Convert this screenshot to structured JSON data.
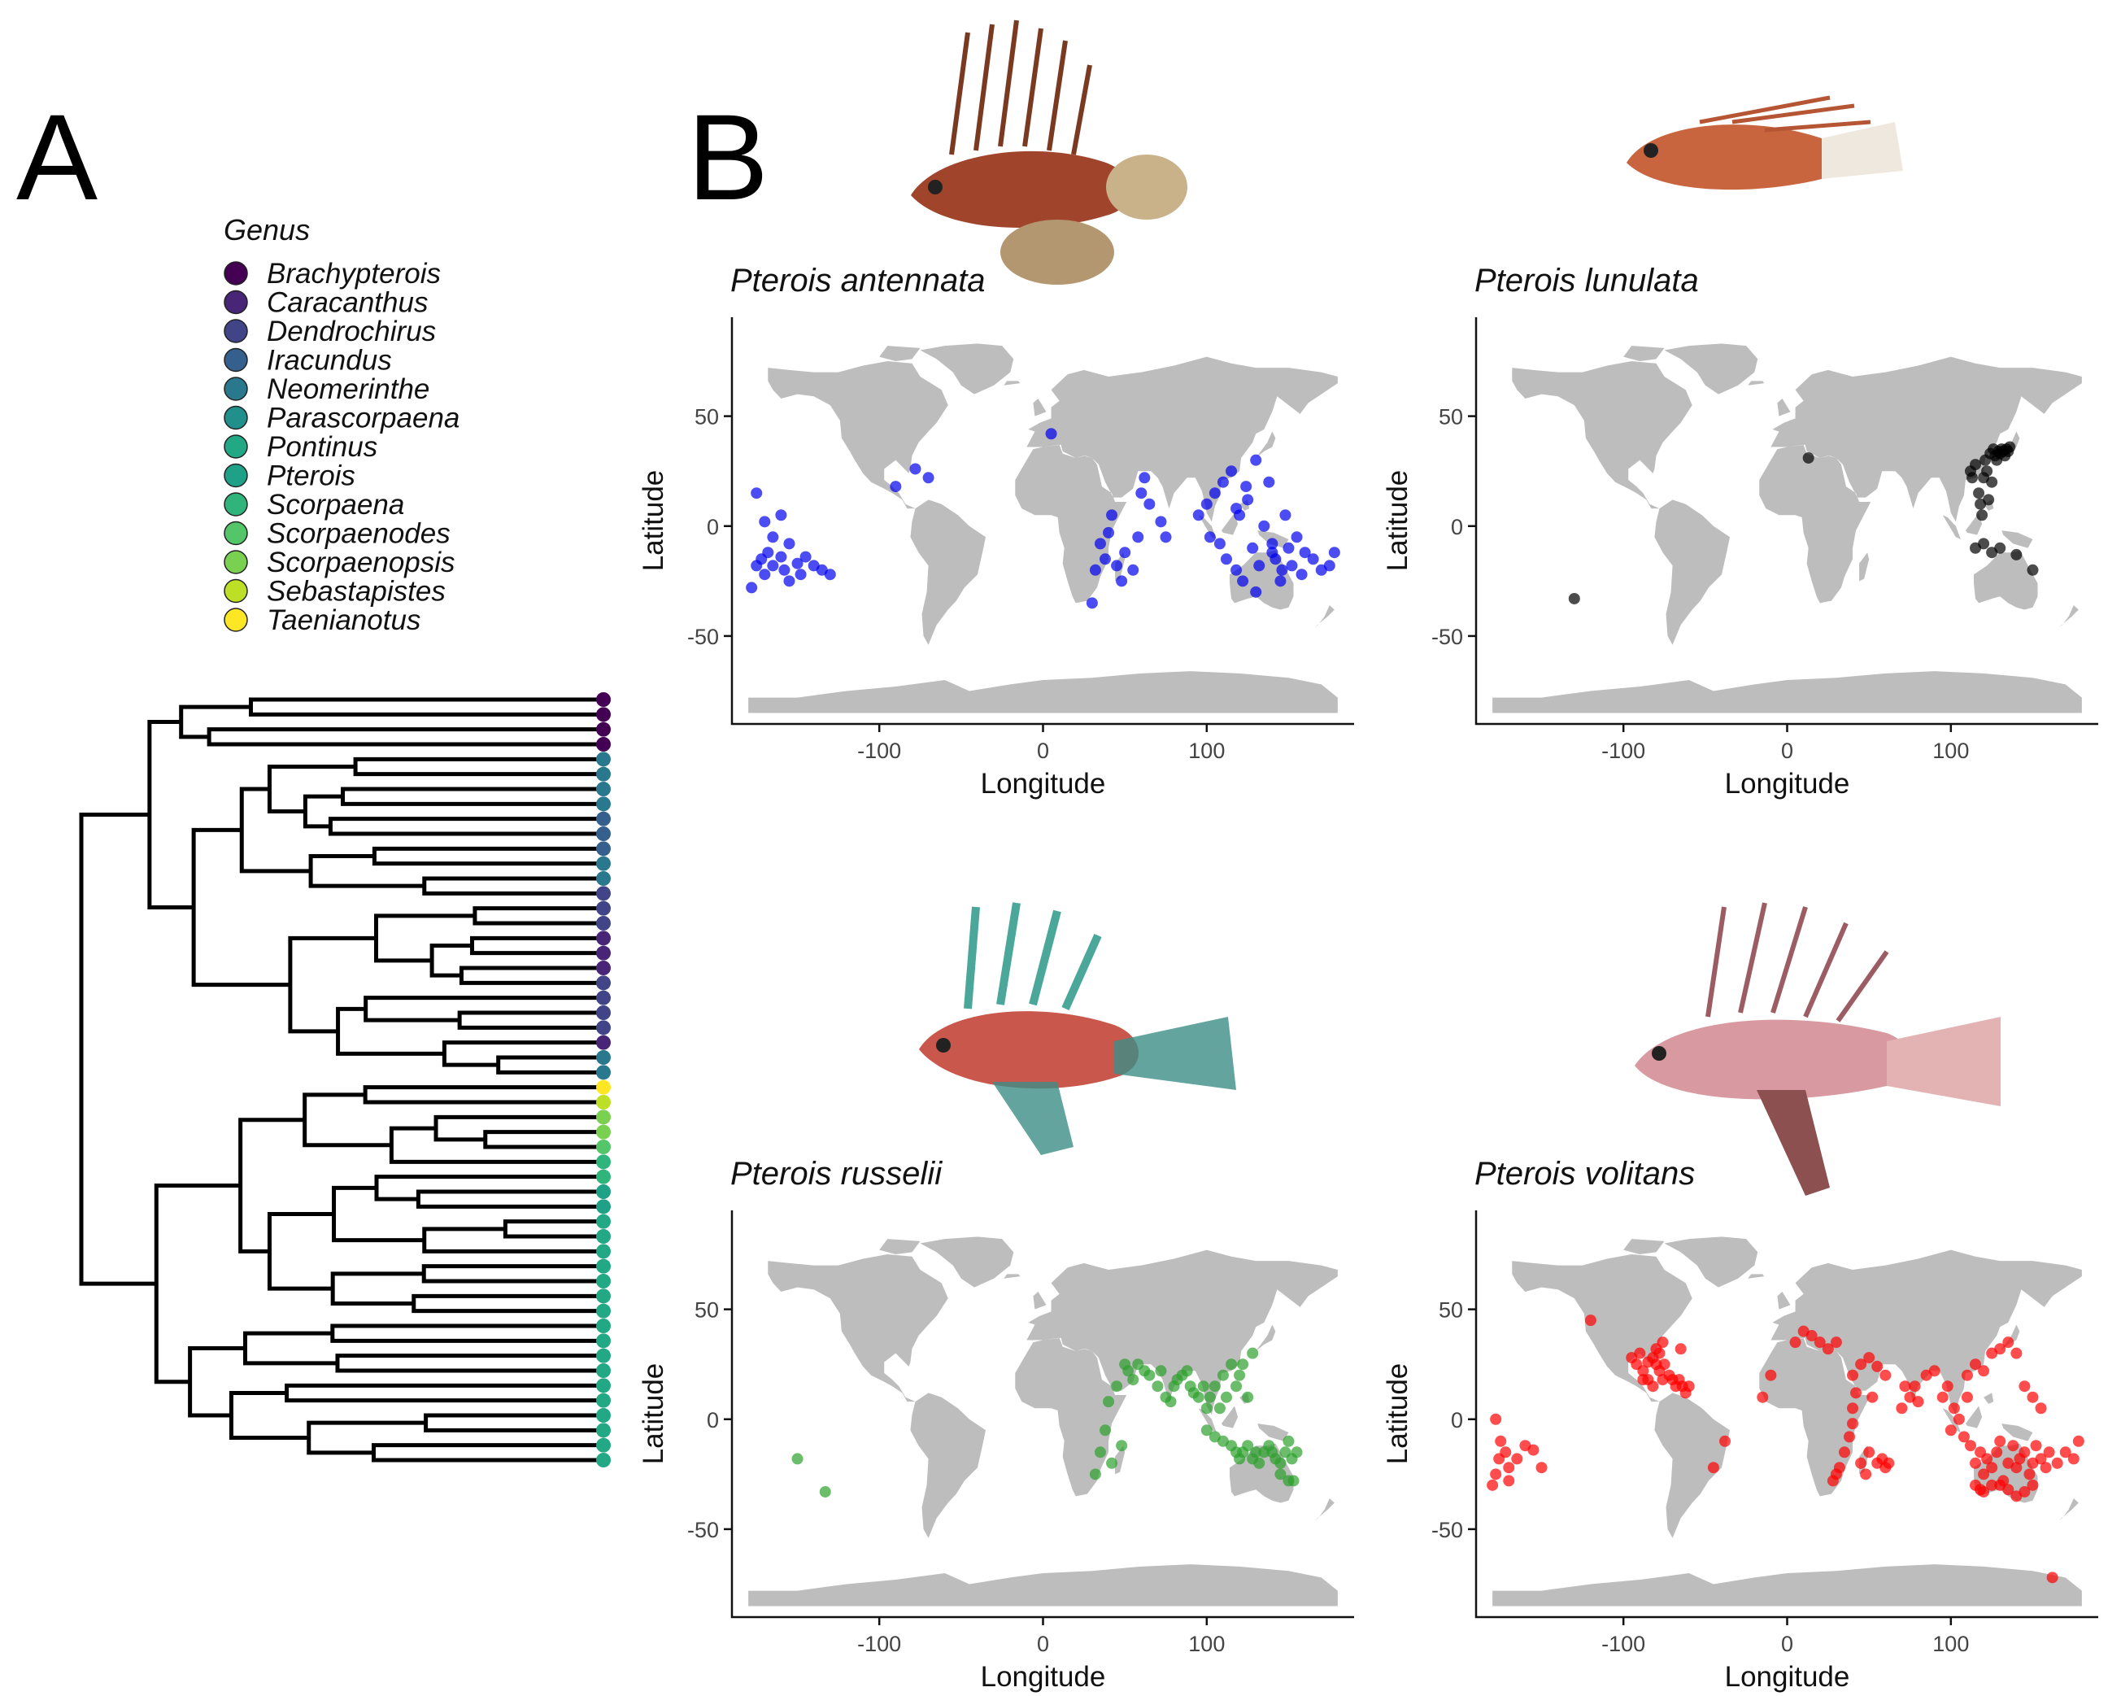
{
  "panels": {
    "a_label": "A",
    "b_label": "B"
  },
  "legend": {
    "title": "Genus",
    "items": [
      {
        "label": "Brachypterois",
        "color": "#440154"
      },
      {
        "label": "Caracanthus",
        "color": "#482576"
      },
      {
        "label": "Dendrochirus",
        "color": "#414487"
      },
      {
        "label": "Iracundus",
        "color": "#35608d"
      },
      {
        "label": "Neomerinthe",
        "color": "#2a788e"
      },
      {
        "label": "Parascorpaena",
        "color": "#21908c"
      },
      {
        "label": "Pontinus",
        "color": "#22a884"
      },
      {
        "label": "Pterois",
        "color": "#1fa187"
      },
      {
        "label": "Scorpaena",
        "color": "#2fb47c"
      },
      {
        "label": "Scorpaenodes",
        "color": "#54c568"
      },
      {
        "label": "Scorpaenopsis",
        "color": "#7ad151"
      },
      {
        "label": "Sebastapistes",
        "color": "#bddf26"
      },
      {
        "label": "Taenianotus",
        "color": "#fde725"
      }
    ]
  },
  "chart_data": [
    {
      "type": "scatter",
      "title": "Pterois antennata",
      "xlabel": "Longitude",
      "ylabel": "Latitude",
      "xlim": [
        -190,
        190
      ],
      "ylim": [
        -90,
        95
      ],
      "xticks": [
        -100,
        0,
        100
      ],
      "yticks": [
        -50,
        0,
        50
      ],
      "color": "#0000ee",
      "points": [
        [
          -178,
          -28
        ],
        [
          -175,
          -18
        ],
        [
          -172,
          -15
        ],
        [
          -170,
          -22
        ],
        [
          -168,
          -12
        ],
        [
          -165,
          -18
        ],
        [
          -160,
          -14
        ],
        [
          -158,
          -20
        ],
        [
          -155,
          -25
        ],
        [
          -150,
          -17
        ],
        [
          -148,
          -22
        ],
        [
          -145,
          -14
        ],
        [
          -140,
          -18
        ],
        [
          -135,
          -20
        ],
        [
          -130,
          -22
        ],
        [
          -175,
          15
        ],
        [
          -170,
          2
        ],
        [
          -165,
          -5
        ],
        [
          -160,
          5
        ],
        [
          -155,
          -8
        ],
        [
          -78,
          26
        ],
        [
          -70,
          22
        ],
        [
          -90,
          18
        ],
        [
          5,
          42
        ],
        [
          30,
          -35
        ],
        [
          32,
          -20
        ],
        [
          35,
          -8
        ],
        [
          38,
          -15
        ],
        [
          40,
          -3
        ],
        [
          42,
          5
        ],
        [
          45,
          -18
        ],
        [
          48,
          -25
        ],
        [
          50,
          -12
        ],
        [
          55,
          -20
        ],
        [
          58,
          -5
        ],
        [
          60,
          15
        ],
        [
          62,
          22
        ],
        [
          65,
          10
        ],
        [
          72,
          2
        ],
        [
          75,
          -5
        ],
        [
          95,
          5
        ],
        [
          100,
          10
        ],
        [
          102,
          -5
        ],
        [
          105,
          15
        ],
        [
          108,
          -8
        ],
        [
          110,
          20
        ],
        [
          112,
          -15
        ],
        [
          115,
          25
        ],
        [
          118,
          -20
        ],
        [
          120,
          5
        ],
        [
          122,
          -25
        ],
        [
          125,
          12
        ],
        [
          128,
          -10
        ],
        [
          130,
          30
        ],
        [
          132,
          -18
        ],
        [
          135,
          0
        ],
        [
          138,
          20
        ],
        [
          140,
          -8
        ],
        [
          142,
          -15
        ],
        [
          145,
          -25
        ],
        [
          148,
          5
        ],
        [
          150,
          -10
        ],
        [
          152,
          -18
        ],
        [
          155,
          -5
        ],
        [
          158,
          -22
        ],
        [
          160,
          -12
        ],
        [
          165,
          -15
        ],
        [
          170,
          -20
        ],
        [
          175,
          -18
        ],
        [
          178,
          -12
        ],
        [
          118,
          8
        ],
        [
          124,
          18
        ],
        [
          130,
          -30
        ],
        [
          140,
          -12
        ],
        [
          146,
          -20
        ]
      ]
    },
    {
      "type": "scatter",
      "title": "Pterois lunulata",
      "xlabel": "Longitude",
      "ylabel": "Latitude",
      "xlim": [
        -190,
        190
      ],
      "ylim": [
        -90,
        95
      ],
      "xticks": [
        -100,
        0,
        100
      ],
      "yticks": [
        -50,
        0,
        50
      ],
      "color": "#000000",
      "points": [
        [
          -130,
          -33
        ],
        [
          13,
          31
        ],
        [
          112,
          25
        ],
        [
          113,
          22
        ],
        [
          115,
          28
        ],
        [
          117,
          15
        ],
        [
          118,
          10
        ],
        [
          119,
          5
        ],
        [
          120,
          22
        ],
        [
          121,
          30
        ],
        [
          122,
          25
        ],
        [
          123,
          12
        ],
        [
          124,
          33
        ],
        [
          125,
          20
        ],
        [
          126,
          35
        ],
        [
          127,
          32
        ],
        [
          128,
          30
        ],
        [
          129,
          34
        ],
        [
          130,
          33
        ],
        [
          131,
          35
        ],
        [
          132,
          34
        ],
        [
          133,
          32
        ],
        [
          134,
          35
        ],
        [
          135,
          34
        ],
        [
          136,
          36
        ],
        [
          115,
          -10
        ],
        [
          120,
          -8
        ],
        [
          125,
          -12
        ],
        [
          130,
          -10
        ],
        [
          140,
          -13
        ],
        [
          150,
          -20
        ]
      ]
    },
    {
      "type": "scatter",
      "title": "Pterois russelii",
      "xlabel": "Longitude",
      "ylabel": "Latitude",
      "xlim": [
        -190,
        190
      ],
      "ylim": [
        -90,
        95
      ],
      "xticks": [
        -100,
        0,
        100
      ],
      "yticks": [
        -50,
        0,
        50
      ],
      "color": "#2ca02c",
      "points": [
        [
          -150,
          -18
        ],
        [
          -133,
          -33
        ],
        [
          32,
          -25
        ],
        [
          35,
          -15
        ],
        [
          38,
          -5
        ],
        [
          40,
          8
        ],
        [
          42,
          -20
        ],
        [
          45,
          15
        ],
        [
          48,
          -12
        ],
        [
          50,
          25
        ],
        [
          52,
          22
        ],
        [
          55,
          18
        ],
        [
          58,
          25
        ],
        [
          62,
          22
        ],
        [
          65,
          20
        ],
        [
          70,
          15
        ],
        [
          72,
          22
        ],
        [
          75,
          10
        ],
        [
          78,
          8
        ],
        [
          80,
          15
        ],
        [
          82,
          18
        ],
        [
          85,
          20
        ],
        [
          88,
          22
        ],
        [
          90,
          15
        ],
        [
          92,
          12
        ],
        [
          95,
          10
        ],
        [
          98,
          15
        ],
        [
          100,
          5
        ],
        [
          102,
          10
        ],
        [
          105,
          15
        ],
        [
          108,
          5
        ],
        [
          110,
          20
        ],
        [
          112,
          10
        ],
        [
          115,
          25
        ],
        [
          118,
          15
        ],
        [
          120,
          20
        ],
        [
          122,
          25
        ],
        [
          125,
          10
        ],
        [
          128,
          30
        ],
        [
          100,
          -5
        ],
        [
          105,
          -8
        ],
        [
          110,
          -10
        ],
        [
          115,
          -12
        ],
        [
          118,
          -15
        ],
        [
          120,
          -18
        ],
        [
          122,
          -15
        ],
        [
          125,
          -12
        ],
        [
          128,
          -18
        ],
        [
          130,
          -15
        ],
        [
          132,
          -20
        ],
        [
          135,
          -15
        ],
        [
          138,
          -12
        ],
        [
          140,
          -15
        ],
        [
          142,
          -18
        ],
        [
          145,
          -20
        ],
        [
          148,
          -15
        ],
        [
          150,
          -10
        ],
        [
          152,
          -18
        ],
        [
          155,
          -15
        ],
        [
          145,
          -25
        ],
        [
          150,
          -28
        ],
        [
          153,
          -28
        ]
      ]
    },
    {
      "type": "scatter",
      "title": "Pterois volitans",
      "xlabel": "Longitude",
      "ylabel": "Latitude",
      "xlim": [
        -190,
        190
      ],
      "ylim": [
        -90,
        95
      ],
      "xticks": [
        -100,
        0,
        100
      ],
      "yticks": [
        -50,
        0,
        50
      ],
      "color": "#ff0000",
      "points": [
        [
          -180,
          -30
        ],
        [
          -178,
          -25
        ],
        [
          -176,
          -18
        ],
        [
          -175,
          -10
        ],
        [
          -172,
          -15
        ],
        [
          -170,
          -22
        ],
        [
          -165,
          -18
        ],
        [
          -160,
          -12
        ],
        [
          -155,
          -14
        ],
        [
          -150,
          -22
        ],
        [
          -178,
          0
        ],
        [
          -170,
          -28
        ],
        [
          -120,
          45
        ],
        [
          -95,
          28
        ],
        [
          -92,
          25
        ],
        [
          -90,
          30
        ],
        [
          -88,
          22
        ],
        [
          -85,
          26
        ],
        [
          -82,
          28
        ],
        [
          -80,
          25
        ],
        [
          -78,
          22
        ],
        [
          -76,
          18
        ],
        [
          -75,
          25
        ],
        [
          -72,
          20
        ],
        [
          -70,
          18
        ],
        [
          -68,
          15
        ],
        [
          -66,
          18
        ],
        [
          -64,
          15
        ],
        [
          -62,
          12
        ],
        [
          -60,
          15
        ],
        [
          -85,
          18
        ],
        [
          -82,
          15
        ],
        [
          -88,
          18
        ],
        [
          -80,
          32
        ],
        [
          -76,
          35
        ],
        [
          -78,
          30
        ],
        [
          -65,
          32
        ],
        [
          -45,
          -22
        ],
        [
          -38,
          -10
        ],
        [
          -10,
          20
        ],
        [
          -15,
          10
        ],
        [
          5,
          35
        ],
        [
          10,
          40
        ],
        [
          15,
          38
        ],
        [
          20,
          35
        ],
        [
          25,
          32
        ],
        [
          30,
          35
        ],
        [
          28,
          -28
        ],
        [
          30,
          -25
        ],
        [
          32,
          -22
        ],
        [
          35,
          -15
        ],
        [
          38,
          -8
        ],
        [
          40,
          -2
        ],
        [
          40,
          5
        ],
        [
          42,
          12
        ],
        [
          45,
          -20
        ],
        [
          48,
          -25
        ],
        [
          50,
          -15
        ],
        [
          52,
          10
        ],
        [
          55,
          -20
        ],
        [
          58,
          -18
        ],
        [
          60,
          -22
        ],
        [
          62,
          -20
        ],
        [
          40,
          20
        ],
        [
          45,
          25
        ],
        [
          50,
          28
        ],
        [
          55,
          24
        ],
        [
          60,
          20
        ],
        [
          70,
          5
        ],
        [
          72,
          15
        ],
        [
          75,
          10
        ],
        [
          78,
          15
        ],
        [
          80,
          8
        ],
        [
          85,
          20
        ],
        [
          90,
          22
        ],
        [
          95,
          10
        ],
        [
          98,
          15
        ],
        [
          100,
          -5
        ],
        [
          102,
          5
        ],
        [
          105,
          0
        ],
        [
          108,
          -8
        ],
        [
          110,
          10
        ],
        [
          112,
          -12
        ],
        [
          115,
          -20
        ],
        [
          118,
          -15
        ],
        [
          120,
          -25
        ],
        [
          122,
          -18
        ],
        [
          125,
          -22
        ],
        [
          128,
          -15
        ],
        [
          130,
          -10
        ],
        [
          132,
          -28
        ],
        [
          135,
          -20
        ],
        [
          138,
          -12
        ],
        [
          140,
          -22
        ],
        [
          142,
          -18
        ],
        [
          145,
          -15
        ],
        [
          148,
          -25
        ],
        [
          150,
          -20
        ],
        [
          152,
          -12
        ],
        [
          155,
          -18
        ],
        [
          158,
          -22
        ],
        [
          160,
          -15
        ],
        [
          165,
          -20
        ],
        [
          170,
          -15
        ],
        [
          175,
          -18
        ],
        [
          178,
          -10
        ],
        [
          115,
          -30
        ],
        [
          118,
          -32
        ],
        [
          120,
          -33
        ],
        [
          125,
          -30
        ],
        [
          130,
          -30
        ],
        [
          135,
          -32
        ],
        [
          140,
          -35
        ],
        [
          145,
          -33
        ],
        [
          150,
          -30
        ],
        [
          110,
          20
        ],
        [
          115,
          25
        ],
        [
          120,
          22
        ],
        [
          125,
          30
        ],
        [
          130,
          32
        ],
        [
          135,
          35
        ],
        [
          140,
          30
        ],
        [
          145,
          15
        ],
        [
          150,
          10
        ],
        [
          155,
          5
        ],
        [
          162,
          -72
        ]
      ]
    }
  ]
}
